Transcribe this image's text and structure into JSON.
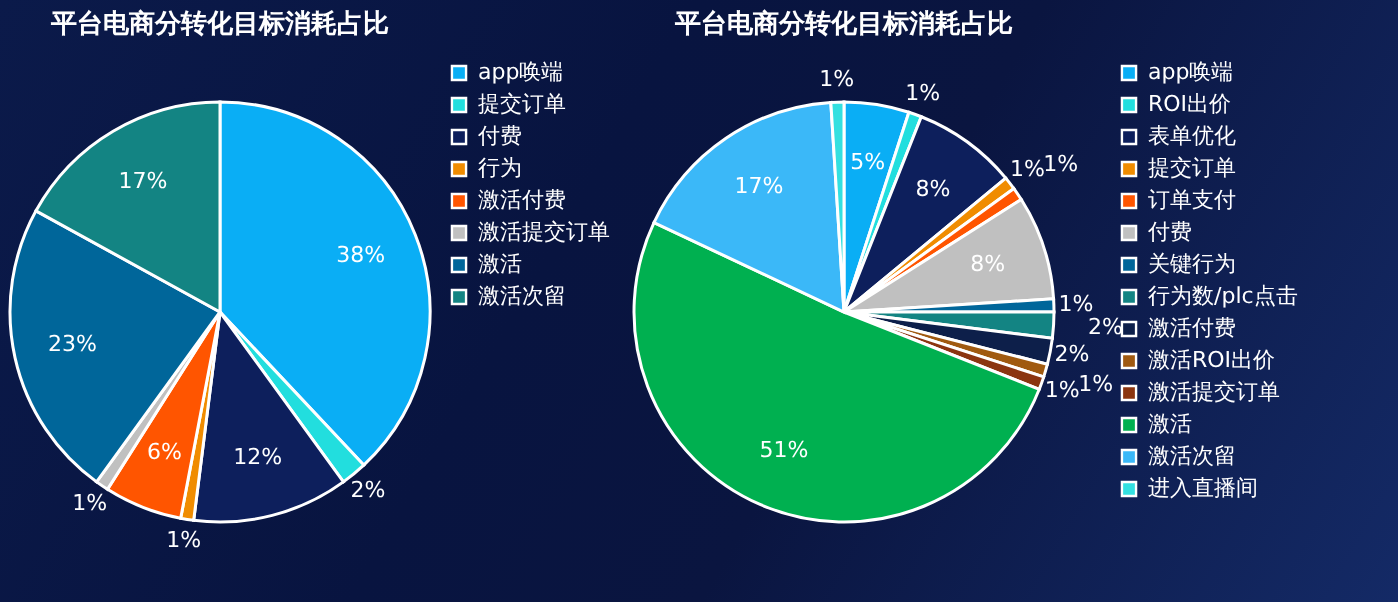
{
  "chart_data": [
    {
      "type": "pie",
      "title": "平台电商分转化目标消耗占比",
      "legend": "right",
      "categories": [
        "app唤端",
        "提交订单",
        "付费",
        "行为",
        "激活付费",
        "激活提交订单",
        "激活",
        "激活次留"
      ],
      "values": [
        38,
        2,
        12,
        1,
        6,
        1,
        23,
        17
      ],
      "value_labels": [
        "38%",
        "2%",
        "12%",
        "1%",
        "6%",
        "1%",
        "23%",
        "17%"
      ],
      "colors": [
        "#0aaef5",
        "#22dede",
        "#0d1f5c",
        "#f08c00",
        "#ff5500",
        "#c0c0c0",
        "#00669a",
        "#138483"
      ]
    },
    {
      "type": "pie",
      "title": "平台电商分转化目标消耗占比",
      "legend": "right",
      "categories": [
        "app唤端",
        "ROI出价",
        "表单优化",
        "提交订单",
        "订单支付",
        "付费",
        "关键行为",
        "行为数/plc点击",
        "激活付费",
        "激活ROI出价",
        "激活提交订单",
        "激活",
        "激活次留",
        "进入直播间"
      ],
      "values": [
        5,
        1,
        8,
        1,
        1,
        8,
        1,
        2,
        2,
        1,
        1,
        51,
        17,
        1
      ],
      "value_labels": [
        "5%",
        "1%",
        "8%",
        "1%",
        "1%",
        "8%",
        "1%",
        "2%",
        "2%",
        "1%",
        "1%",
        "51%",
        "17%",
        "1%"
      ],
      "colors": [
        "#0aaef5",
        "#22dede",
        "#0d1f5c",
        "#f08c00",
        "#ff5500",
        "#c0c0c0",
        "#00669a",
        "#138483",
        "#0d1f4a",
        "#a05a10",
        "#8b3510",
        "#00b050",
        "#3bb8f8",
        "#33e0e0"
      ]
    }
  ]
}
